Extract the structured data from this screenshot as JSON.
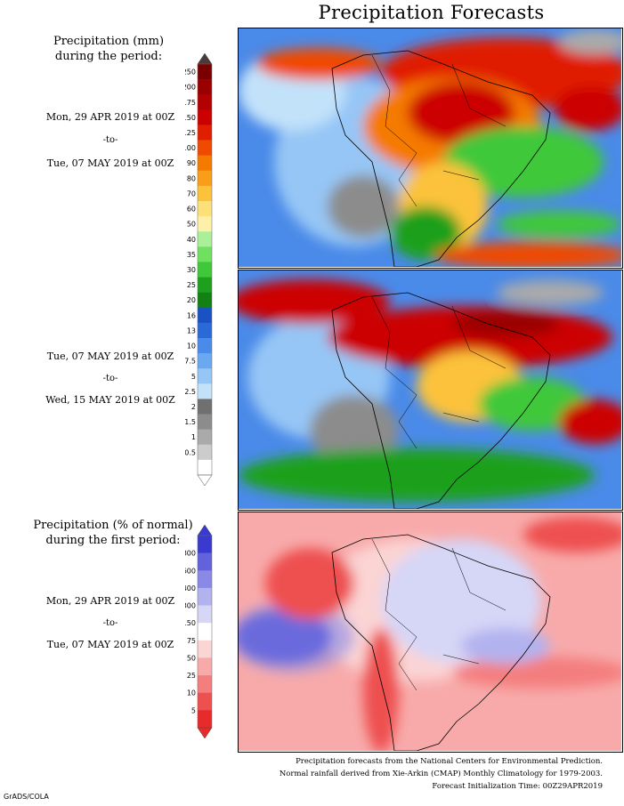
{
  "title": "Precipitation Forecasts",
  "panel_left_top": {
    "heading_line1": "Precipitation (mm)",
    "heading_line2": "during the period:",
    "period1_start": "Mon, 29 APR 2019 at 00Z",
    "period1_to": "-to-",
    "period1_end": "Tue, 07 MAY 2019 at 00Z",
    "period2_start": "Tue, 07 MAY 2019 at 00Z",
    "period2_to": "-to-",
    "period2_end": "Wed, 15 MAY 2019 at 00Z"
  },
  "panel_left_bottom": {
    "heading_line1": "Precipitation (% of normal)",
    "heading_line2": "during the first period:",
    "period_start": "Mon, 29 APR 2019 at 00Z",
    "period_to": "-to-",
    "period_end": "Tue, 07 MAY 2019 at 00Z"
  },
  "colorbar_mm": {
    "labels": [
      "250",
      "200",
      "175",
      "150",
      "125",
      "100",
      "90",
      "80",
      "70",
      "60",
      "50",
      "40",
      "35",
      "30",
      "25",
      "20",
      "16",
      "13",
      "10",
      "7.5",
      "5",
      "2.5",
      "2",
      "1.5",
      "1",
      "0.5"
    ],
    "colors": [
      "#7a0000",
      "#9a0000",
      "#b30000",
      "#cc0000",
      "#e01f00",
      "#f04a00",
      "#f57a00",
      "#fa9e1a",
      "#fcc23a",
      "#fde07a",
      "#fff0a8",
      "#a9f098",
      "#6fe060",
      "#3fc83a",
      "#1ea01e",
      "#128012",
      "#1a52c4",
      "#2a6ad8",
      "#4a8ae8",
      "#6aa8f0",
      "#96c6f6",
      "#c2e2fa",
      "#707070",
      "#8c8c8c",
      "#aaaaaa",
      "#cccccc",
      "#ffffff"
    ],
    "top_color": "#4a3a3a"
  },
  "colorbar_pct": {
    "labels": [
      "800",
      "600",
      "400",
      "300",
      "150",
      "75",
      "50",
      "25",
      "10",
      "5"
    ],
    "colors": [
      "#3a3ad0",
      "#6262dc",
      "#8a8ae6",
      "#b2b2ef",
      "#d6d6f7",
      "#ffffff",
      "#fbd4d4",
      "#f8aaaa",
      "#f47e7e",
      "#ee5050",
      "#e82a2a"
    ]
  },
  "footer": {
    "line1": "Precipitation forecasts from the National Centers for Environmental Prediction.",
    "line2": "Normal rainfall derived from Xie-Arkin (CMAP) Monthly Climatology for 1979-2003.",
    "line3": "Forecast Initialization Time: 00Z29APR2019"
  },
  "credit": "GrADS/COLA"
}
